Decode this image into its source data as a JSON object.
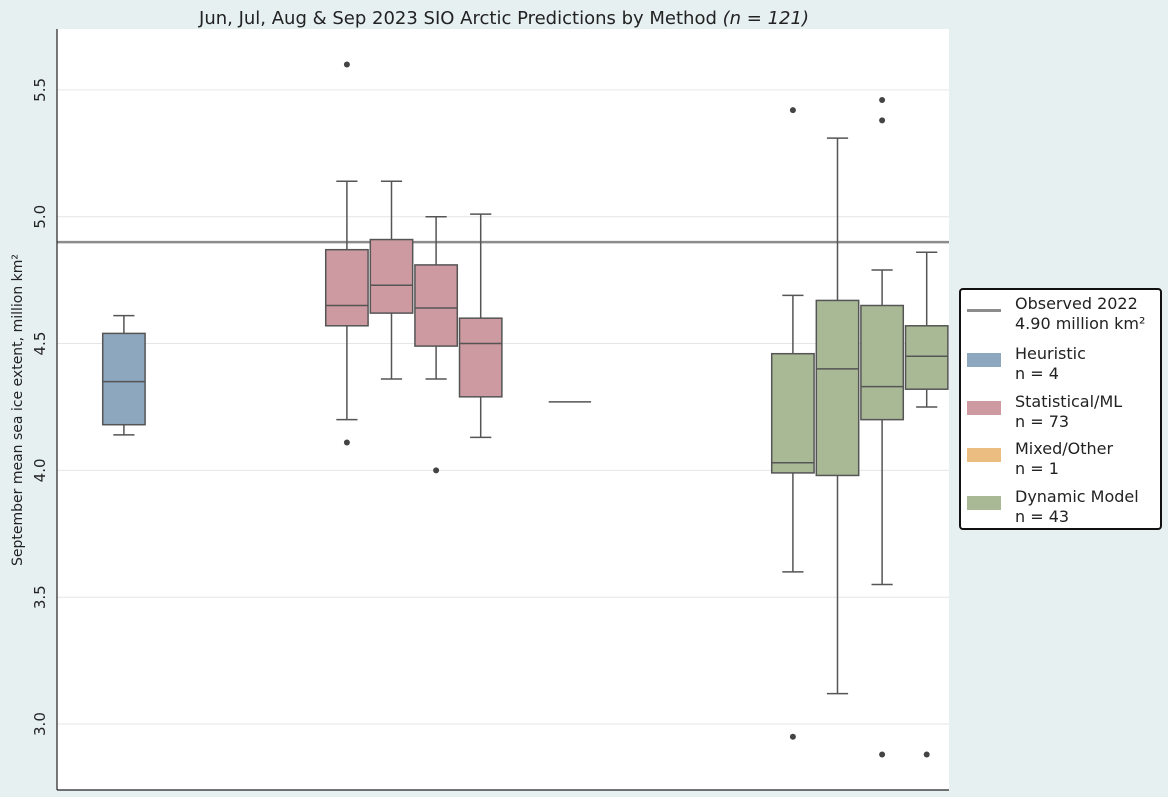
{
  "chart_data": {
    "type": "box",
    "title": "Jun, Jul, Aug & Sep 2023 SIO Arctic Predictions by Method",
    "title_n": "(n = 121)",
    "ylabel": "September mean sea ice extent, million km²",
    "ylim": [
      2.74,
      5.74
    ],
    "yticks": [
      "3.0",
      "3.5",
      "4.0",
      "4.5",
      "5.0",
      "5.5"
    ],
    "grid": true,
    "legend_position": "right",
    "reference_line": {
      "value": 4.9,
      "label": "Observed 2022",
      "sublabel": "4.90 million km²",
      "color": "#8c8c8c"
    },
    "method_colors": {
      "Heuristic": "#8da7bf",
      "Statistical/ML": "#cc9aa0",
      "Mixed/Other": "#ebbd80",
      "Dynamic Model": "#a9b996"
    },
    "legend": [
      {
        "name": "Heuristic",
        "count": "n = 4",
        "color": "#8da7bf"
      },
      {
        "name": "Statistical/ML",
        "count": "n = 73",
        "color": "#cc9aa0"
      },
      {
        "name": "Mixed/Other",
        "count": "n = 1",
        "color": "#ebbd80"
      },
      {
        "name": "Dynamic Model",
        "count": "n = 43",
        "color": "#a9b996"
      }
    ],
    "slot_count": 20,
    "boxes": [
      {
        "method": "Heuristic",
        "slot": 1,
        "whisker_low": 4.14,
        "q1": 4.18,
        "median": 4.35,
        "q3": 4.54,
        "whisker_high": 4.61,
        "outliers": []
      },
      {
        "method": "Statistical/ML",
        "slot": 6,
        "whisker_low": 4.2,
        "q1": 4.57,
        "median": 4.65,
        "q3": 4.87,
        "whisker_high": 5.14,
        "outliers": [
          4.11,
          5.6
        ]
      },
      {
        "method": "Statistical/ML",
        "slot": 7,
        "whisker_low": 4.36,
        "q1": 4.62,
        "median": 4.73,
        "q3": 4.91,
        "whisker_high": 5.14,
        "outliers": []
      },
      {
        "method": "Statistical/ML",
        "slot": 8,
        "whisker_low": 4.36,
        "q1": 4.49,
        "median": 4.64,
        "q3": 4.81,
        "whisker_high": 5.0,
        "outliers": [
          4.0
        ]
      },
      {
        "method": "Statistical/ML",
        "slot": 9,
        "whisker_low": 4.13,
        "q1": 4.29,
        "median": 4.5,
        "q3": 4.6,
        "whisker_high": 5.01,
        "outliers": []
      },
      {
        "method": "Mixed/Other",
        "slot": 11,
        "whisker_low": 4.27,
        "q1": 4.27,
        "median": 4.27,
        "q3": 4.27,
        "whisker_high": 4.27,
        "outliers": []
      },
      {
        "method": "Dynamic Model",
        "slot": 16,
        "whisker_low": 3.6,
        "q1": 3.99,
        "median": 4.03,
        "q3": 4.46,
        "whisker_high": 4.69,
        "outliers": [
          2.95,
          5.42
        ]
      },
      {
        "method": "Dynamic Model",
        "slot": 17,
        "whisker_low": 3.12,
        "q1": 3.98,
        "median": 4.4,
        "q3": 4.67,
        "whisker_high": 5.31,
        "outliers": []
      },
      {
        "method": "Dynamic Model",
        "slot": 18,
        "whisker_low": 3.55,
        "q1": 4.2,
        "median": 4.33,
        "q3": 4.65,
        "whisker_high": 4.79,
        "outliers": [
          2.88,
          5.38,
          5.46
        ]
      },
      {
        "method": "Dynamic Model",
        "slot": 19,
        "whisker_low": 4.25,
        "q1": 4.32,
        "median": 4.45,
        "q3": 4.57,
        "whisker_high": 4.86,
        "outliers": [
          2.88
        ]
      }
    ]
  }
}
